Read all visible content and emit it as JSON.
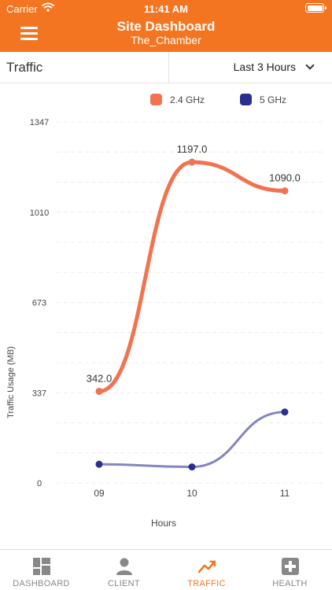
{
  "status_bar": {
    "carrier": "Carrier",
    "time": "11:41 AM"
  },
  "header": {
    "title": "Site Dashboard",
    "subtitle": "The_Chamber"
  },
  "toolbar": {
    "section_title": "Traffic",
    "range": "Last 3 Hours"
  },
  "colors": {
    "brand": "#f47521",
    "series_24": "#f2734f",
    "series_5": "#8585c0",
    "marker_5": "#2a2f8f"
  },
  "chart_data": {
    "type": "line",
    "x": [
      "09",
      "10",
      "11"
    ],
    "xlabel": "Hours",
    "ylabel": "Traffic Usage (MB)",
    "ylim": [
      0,
      1347
    ],
    "yticks": [
      "1347",
      "1010",
      "673",
      "337",
      "0"
    ],
    "legend_position": "top",
    "grid": true,
    "series": [
      {
        "name": "2.4 GHz",
        "values": [
          342.0,
          1197.0,
          1090.0
        ],
        "labels": [
          "342.0",
          "1197.0",
          "1090.0"
        ]
      },
      {
        "name": "5 GHz",
        "values": [
          70,
          60,
          265
        ]
      }
    ]
  },
  "tabs": [
    {
      "label": "DASHBOARD",
      "icon": "dashboard-icon"
    },
    {
      "label": "CLIENT",
      "icon": "client-icon"
    },
    {
      "label": "TRAFFIC",
      "icon": "traffic-icon",
      "active": true
    },
    {
      "label": "HEALTH",
      "icon": "health-icon"
    }
  ]
}
